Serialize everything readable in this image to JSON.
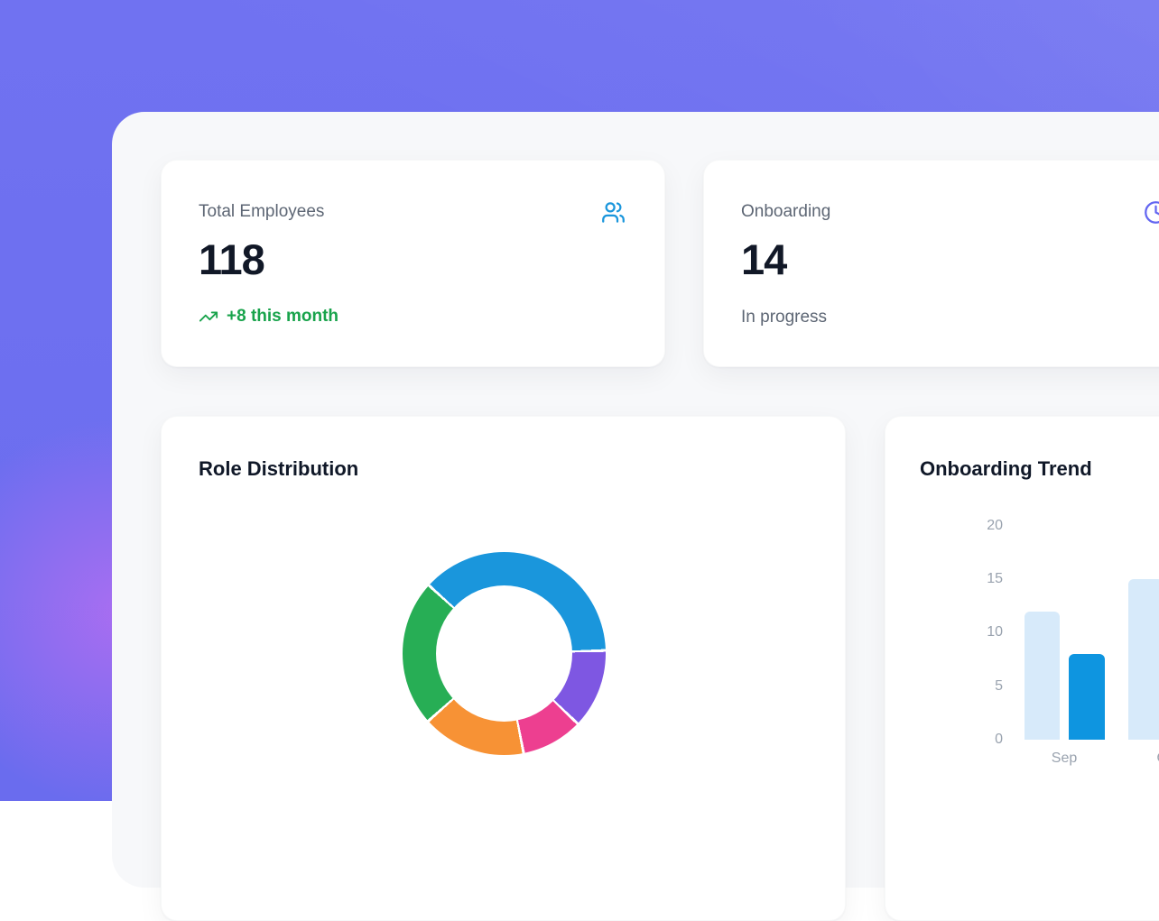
{
  "stat_cards": [
    {
      "label": "Total Employees",
      "value": "118",
      "trend": "+8 this month",
      "icon": "users-icon",
      "icon_color": "#1a96dc",
      "trend_color": "#18a34b"
    },
    {
      "label": "Onboarding",
      "value": "14",
      "sublabel": "In progress",
      "icon": "clock-icon",
      "icon_color": "#6366f1"
    }
  ],
  "chart_data": [
    {
      "id": "role_distribution",
      "type": "pie",
      "title": "Role Distribution",
      "subtype": "donut",
      "legend_visible": false,
      "labels_visible": false,
      "start_angle_css_deg": -47.8,
      "segments": [
        {
          "name": "segment-blue",
          "color": "#1a96dc",
          "percent": 37.8
        },
        {
          "name": "segment-purple",
          "color": "#7e57e2",
          "percent": 12.6
        },
        {
          "name": "segment-pink",
          "color": "#ed3f90",
          "percent": 9.8
        },
        {
          "name": "segment-orange",
          "color": "#f79235",
          "percent": 16.5
        },
        {
          "name": "segment-green",
          "color": "#27ae55",
          "percent": 23.3
        }
      ],
      "separator_color": "#ffffff"
    },
    {
      "id": "onboarding_trend",
      "type": "bar",
      "title": "Onboarding Trend",
      "categories": [
        "Sep",
        "Oct"
      ],
      "series": [
        {
          "name": "series-light",
          "color": "#d7eafa",
          "values": [
            12,
            15
          ]
        },
        {
          "name": "series-dark",
          "color": "#0e95e0",
          "values": [
            8,
            null
          ]
        }
      ],
      "ylim": [
        0,
        20
      ],
      "yticks": [
        20,
        15,
        10,
        5,
        0
      ],
      "grid": false,
      "legend_position": "none"
    }
  ],
  "colors": {
    "background_purple": "#6e70f0",
    "background_glow_pink": "#db6df3",
    "panel": "#f7f8fa",
    "card": "#ffffff",
    "heading": "#101828",
    "value_text": "#111827",
    "muted_text": "#5d6674",
    "axis_text": "#9aa3af",
    "trend_green": "#18a34b"
  }
}
